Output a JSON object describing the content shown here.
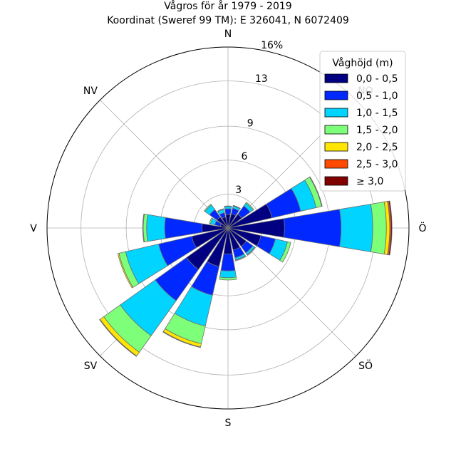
{
  "chart_data": {
    "type": "windrose",
    "title": "Vågros för år 1979 - 2019",
    "subtitle": "Koordinat (Sweref 99 TM): E 326041, N 6072409",
    "directions": [
      "N",
      "NO",
      "Ö",
      "SÖ",
      "S",
      "SV",
      "V",
      "NV"
    ],
    "ring_values": [
      3,
      6,
      9,
      13,
      16
    ],
    "ring_labels": [
      "3",
      "6",
      "9",
      "13",
      "16%"
    ],
    "rmax": 16,
    "legend_title": "Våghöjd (m)",
    "bins": [
      {
        "name": "0,0 - 0,5",
        "color": "#000080"
      },
      {
        "name": "0,5 - 1,0",
        "color": "#0028ff"
      },
      {
        "name": "1,0 - 1,5",
        "color": "#00d4ff"
      },
      {
        "name": "1,5 - 2,0",
        "color": "#7dff7a"
      },
      {
        "name": "2,0 - 2,5",
        "color": "#ffe500"
      },
      {
        "name": "2,5 - 3,0",
        "color": "#ff4a00"
      },
      {
        "name": "≥ 3,0",
        "color": "#800000"
      }
    ],
    "sectors": [
      {
        "dir": 0,
        "values": [
          1.2,
          0.5,
          0.2,
          0.05,
          0,
          0,
          0
        ]
      },
      {
        "dir": 22.5,
        "values": [
          1.3,
          0.5,
          0.2,
          0.05,
          0,
          0,
          0
        ]
      },
      {
        "dir": 45,
        "values": [
          1.5,
          0.9,
          0.3,
          0.1,
          0,
          0,
          0
        ]
      },
      {
        "dir": 67.5,
        "values": [
          4.0,
          2.6,
          1.4,
          0.5,
          0.05,
          0,
          0
        ]
      },
      {
        "dir": 90,
        "values": [
          5.0,
          5.0,
          2.8,
          1.2,
          0.3,
          0.1,
          0.1
        ]
      },
      {
        "dir": 112.5,
        "values": [
          3.0,
          1.3,
          1.1,
          0.3,
          0,
          0,
          0
        ]
      },
      {
        "dir": 135,
        "values": [
          2.0,
          0.7,
          0.2,
          0.05,
          0,
          0,
          0
        ]
      },
      {
        "dir": 157.5,
        "values": [
          2.0,
          0.7,
          0.2,
          0.05,
          0,
          0,
          0
        ]
      },
      {
        "dir": 180,
        "values": [
          2.3,
          1.5,
          0.6,
          0.2,
          0,
          0,
          0
        ]
      },
      {
        "dir": 202.5,
        "values": [
          3.5,
          2.6,
          2.8,
          1.6,
          0.3,
          0.05,
          0
        ]
      },
      {
        "dir": 225,
        "values": [
          4.5,
          3.4,
          3.8,
          1.8,
          0.4,
          0.05,
          0
        ]
      },
      {
        "dir": 247.5,
        "values": [
          3.3,
          3.0,
          3.0,
          0.6,
          0.1,
          0,
          0
        ]
      },
      {
        "dir": 270,
        "values": [
          2.3,
          3.3,
          1.6,
          0.3,
          0.05,
          0,
          0
        ]
      },
      {
        "dir": 292.5,
        "values": [
          0.7,
          0.5,
          0.4,
          0.1,
          0,
          0,
          0
        ]
      },
      {
        "dir": 315,
        "values": [
          1.2,
          0.8,
          0.5,
          0.1,
          0,
          0,
          0
        ]
      },
      {
        "dir": 337.5,
        "values": [
          1.0,
          0.4,
          0.3,
          0.05,
          0,
          0,
          0
        ]
      }
    ]
  }
}
